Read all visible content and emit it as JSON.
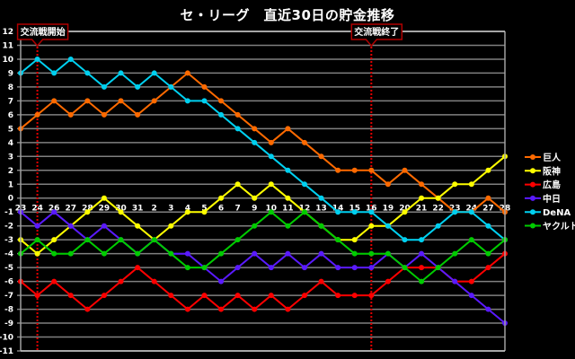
{
  "chart_data": {
    "type": "line",
    "title": "セ・リーグ　直近30日の貯金推移",
    "xlabel": "",
    "ylabel": "",
    "ylim": [
      -11,
      12
    ],
    "grid": true,
    "legend_position": "right",
    "categories": [
      "23",
      "24",
      "26",
      "27",
      "28",
      "29",
      "30",
      "31",
      "2",
      "3",
      "4",
      "5",
      "6",
      "7",
      "9",
      "10",
      "11",
      "12",
      "13",
      "14",
      "15",
      "16",
      "19",
      "20",
      "21",
      "22",
      "23",
      "24",
      "27",
      "28"
    ],
    "yticks": [
      12,
      11,
      10,
      9,
      8,
      7,
      6,
      5,
      4,
      3,
      2,
      1,
      0,
      -1,
      -2,
      -3,
      -4,
      -5,
      -6,
      -7,
      -8,
      -9,
      -10,
      -11
    ],
    "series": [
      {
        "name": "巨人",
        "color": "#ff6a00",
        "values": [
          5,
          6,
          7,
          6,
          7,
          6,
          7,
          6,
          7,
          8,
          9,
          8,
          7,
          6,
          5,
          4,
          5,
          4,
          3,
          2,
          2,
          2,
          1,
          2,
          1,
          0,
          -1,
          -1,
          0,
          -1
        ]
      },
      {
        "name": "阪神",
        "color": "#ffff00",
        "values": [
          -3,
          -4,
          -3,
          -2,
          -1,
          0,
          -1,
          -2,
          -3,
          -2,
          -1,
          -1,
          0,
          1,
          0,
          1,
          0,
          -1,
          -2,
          -3,
          -3,
          -2,
          -2,
          -1,
          0,
          0,
          1,
          1,
          2,
          3
        ]
      },
      {
        "name": "広島",
        "color": "#ff0000",
        "values": [
          -6,
          -7,
          -6,
          -7,
          -8,
          -7,
          -6,
          -5,
          -6,
          -7,
          -8,
          -7,
          -8,
          -7,
          -8,
          -7,
          -8,
          -7,
          -6,
          -7,
          -7,
          -7,
          -6,
          -5,
          -5,
          -5,
          -6,
          -6,
          -5,
          -4
        ]
      },
      {
        "name": "中日",
        "color": "#5a1aff",
        "values": [
          -1,
          -2,
          -1,
          -2,
          -3,
          -2,
          -3,
          -4,
          -3,
          -4,
          -4,
          -5,
          -6,
          -5,
          -4,
          -5,
          -4,
          -5,
          -4,
          -5,
          -5,
          -5,
          -4,
          -5,
          -4,
          -5,
          -6,
          -7,
          -8,
          -9
        ]
      },
      {
        "name": "DeNA",
        "color": "#00d0f0",
        "values": [
          9,
          10,
          9,
          10,
          9,
          8,
          9,
          8,
          9,
          8,
          7,
          7,
          6,
          5,
          4,
          3,
          2,
          1,
          0,
          -1,
          -1,
          -1,
          -2,
          -3,
          -3,
          -2,
          -1,
          -1,
          -2,
          -3
        ]
      },
      {
        "name": "ヤクルト",
        "color": "#00cc00",
        "values": [
          -4,
          -3,
          -4,
          -4,
          -3,
          -4,
          -3,
          -4,
          -3,
          -4,
          -5,
          -5,
          -4,
          -3,
          -2,
          -1,
          -2,
          -1,
          -2,
          -3,
          -4,
          -4,
          -4,
          -5,
          -6,
          -5,
          -4,
          -3,
          -4,
          -3
        ]
      }
    ],
    "annotations": [
      {
        "label": "交流戦開始",
        "x_index": 1,
        "line_color": "#e00000"
      },
      {
        "label": "交流戦終了",
        "x_index": 21,
        "line_color": "#e00000"
      }
    ]
  }
}
